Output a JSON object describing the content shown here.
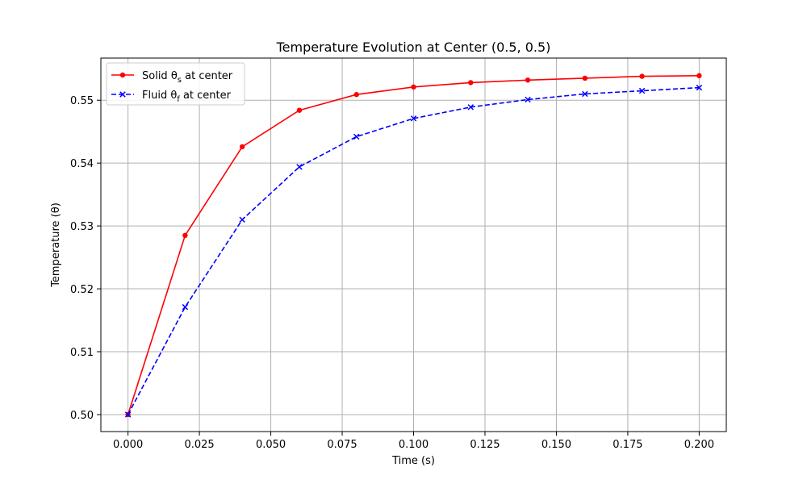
{
  "chart_data": {
    "type": "line",
    "title": "Temperature Evolution at Center (0.5, 0.5)",
    "xlabel": "Time (s)",
    "ylabel": "Temperature (θ)",
    "xlim": [
      -0.0095,
      0.2095
    ],
    "ylim": [
      0.4973,
      0.5567
    ],
    "xticks": [
      0.0,
      0.025,
      0.05,
      0.075,
      0.1,
      0.125,
      0.15,
      0.175,
      0.2
    ],
    "xtick_labels": [
      "0.000",
      "0.025",
      "0.050",
      "0.075",
      "0.100",
      "0.125",
      "0.150",
      "0.175",
      "0.200"
    ],
    "yticks": [
      0.5,
      0.51,
      0.52,
      0.53,
      0.54,
      0.55
    ],
    "ytick_labels": [
      "0.50",
      "0.51",
      "0.52",
      "0.53",
      "0.54",
      "0.55"
    ],
    "grid": true,
    "legend_position": "top-left",
    "x": [
      0.0,
      0.02,
      0.04,
      0.06,
      0.08,
      0.1,
      0.12,
      0.14,
      0.16,
      0.18,
      0.2
    ],
    "series": [
      {
        "name": "Solid θs at center",
        "name_main": "Solid θ",
        "name_sub": "s",
        "name_rest": " at center",
        "color": "#ff0000",
        "line_style": "solid",
        "marker": "circle",
        "values": [
          0.5,
          0.5285,
          0.5426,
          0.5484,
          0.5509,
          0.5521,
          0.5528,
          0.5532,
          0.5535,
          0.5538,
          0.5539
        ]
      },
      {
        "name": "Fluid θf at center",
        "name_main": "Fluid θ",
        "name_sub": "f",
        "name_rest": " at center",
        "color": "#0000ff",
        "line_style": "dashed",
        "marker": "x",
        "values": [
          0.5,
          0.5171,
          0.531,
          0.5394,
          0.5442,
          0.5471,
          0.5489,
          0.5501,
          0.551,
          0.5515,
          0.552
        ]
      }
    ]
  }
}
